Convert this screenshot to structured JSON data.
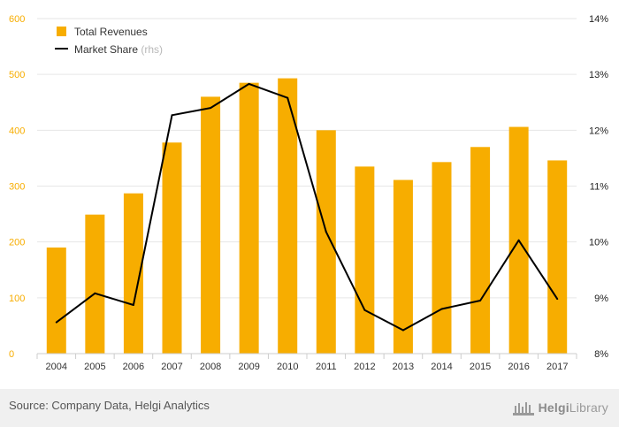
{
  "chart_data": {
    "type": "bar+line",
    "categories": [
      "2004",
      "2005",
      "2006",
      "2007",
      "2008",
      "2009",
      "2010",
      "2011",
      "2012",
      "2013",
      "2014",
      "2015",
      "2016",
      "2017"
    ],
    "series": [
      {
        "name": "Total Revenues",
        "type": "bar",
        "axis": "left",
        "color": "#f7ad00",
        "values": [
          190,
          249,
          287,
          378,
          460,
          485,
          493,
          400,
          335,
          311,
          343,
          370,
          406,
          346
        ]
      },
      {
        "name": "Market Share",
        "name_suffix": "(rhs)",
        "type": "line",
        "axis": "right",
        "color": "#000000",
        "values": [
          8.56,
          9.08,
          8.87,
          12.27,
          12.4,
          12.83,
          12.58,
          10.18,
          8.78,
          8.42,
          8.8,
          8.95,
          10.03,
          8.98
        ]
      }
    ],
    "y_left": {
      "min": 0,
      "max": 600,
      "ticks": [
        "0",
        "100",
        "200",
        "300",
        "400",
        "500",
        "600"
      ],
      "color": "#f7ad00"
    },
    "y_right": {
      "min": 8,
      "max": 14,
      "ticks": [
        "8%",
        "9%",
        "10%",
        "11%",
        "12%",
        "13%",
        "14%"
      ]
    },
    "legend_position": "top-left",
    "grid": true
  },
  "footer": {
    "source": "Source: Company Data, Helgi Analytics",
    "logo_name": "Helgi",
    "logo_suffix": "Library"
  }
}
